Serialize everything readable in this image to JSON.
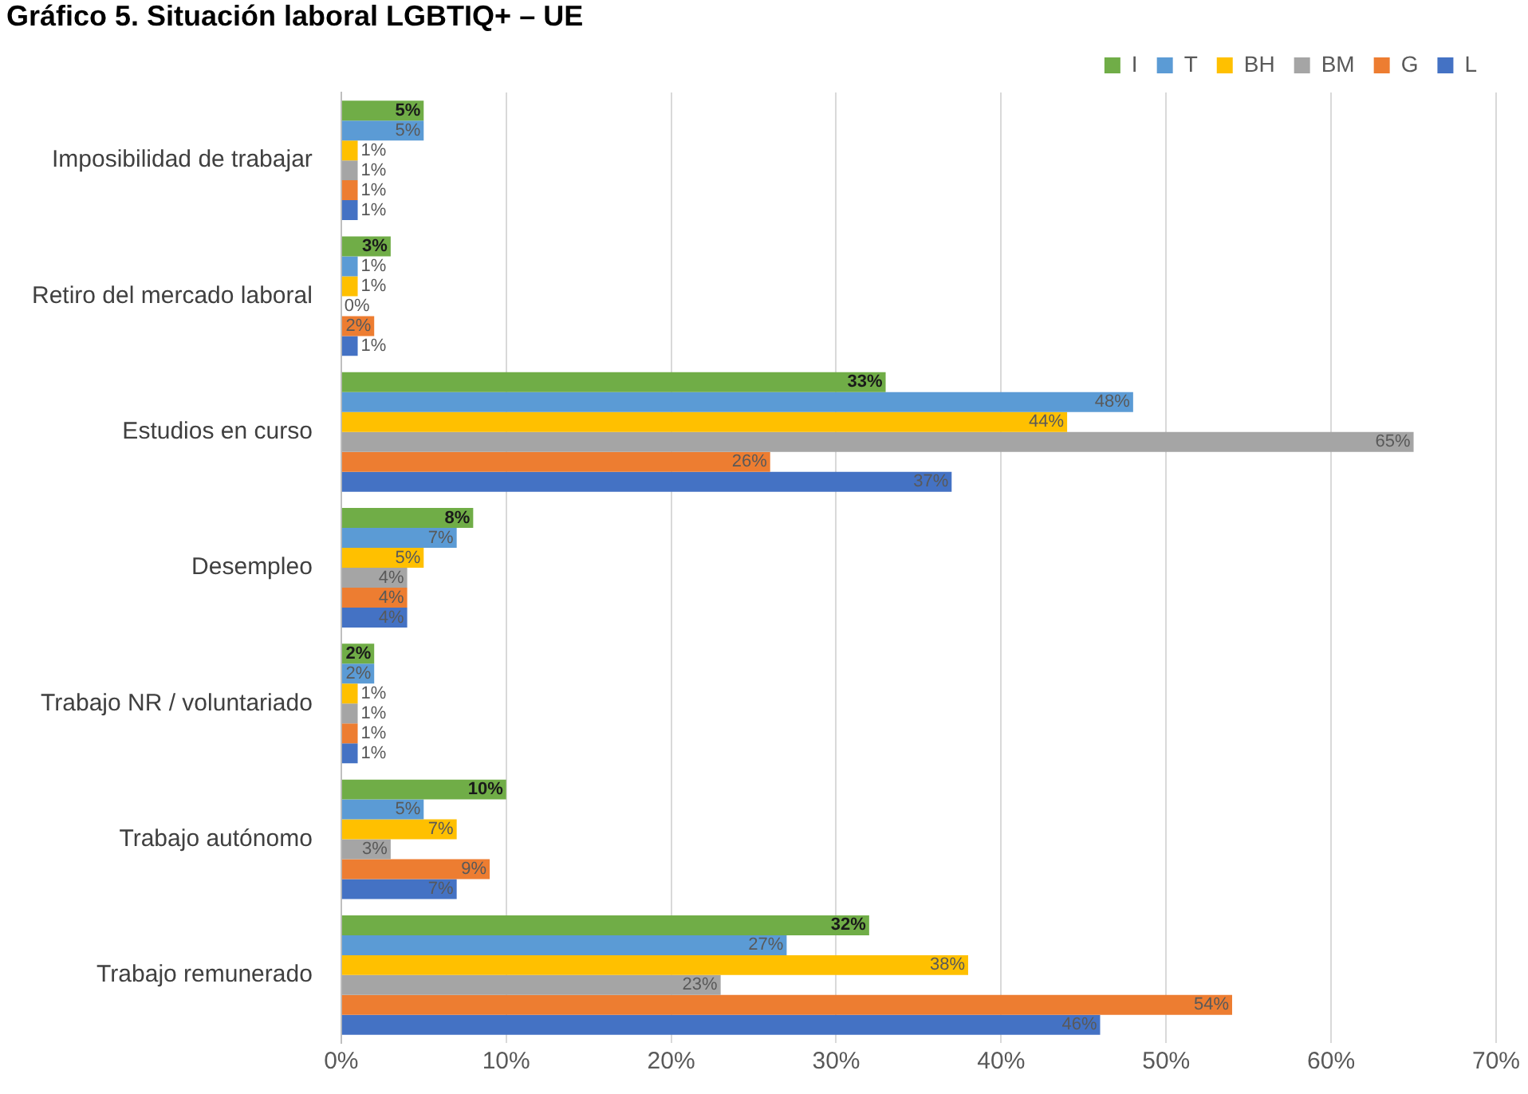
{
  "chart_data": {
    "type": "bar",
    "orientation": "horizontal",
    "title": "Gráfico 5. Situación laboral LGBTIQ+ – UE",
    "categories": [
      "Imposibilidad de trabajar",
      "Retiro del mercado laboral",
      "Estudios en curso",
      "Desempleo",
      "Trabajo NR / voluntariado",
      "Trabajo autónomo",
      "Trabajo remunerado"
    ],
    "series": [
      {
        "name": "I",
        "color": "#70ad47",
        "values": [
          5,
          3,
          33,
          8,
          2,
          10,
          32
        ],
        "value_labels": [
          "5%",
          "3%",
          "33%",
          "8%",
          "2%",
          "10%",
          "32%"
        ]
      },
      {
        "name": "T",
        "color": "#5b9bd5",
        "values": [
          5,
          1,
          48,
          7,
          2,
          5,
          27
        ],
        "value_labels": [
          "5%",
          "1%",
          "48%",
          "7%",
          "2%",
          "5%",
          "27%"
        ]
      },
      {
        "name": "BH",
        "color": "#ffc000",
        "values": [
          1,
          1,
          44,
          5,
          1,
          7,
          38
        ],
        "value_labels": [
          "1%",
          "1%",
          "44%",
          "5%",
          "1%",
          "7%",
          "38%"
        ]
      },
      {
        "name": "BM",
        "color": "#a5a5a5",
        "values": [
          1,
          0,
          65,
          4,
          1,
          3,
          23
        ],
        "value_labels": [
          "1%",
          "0%",
          "65%",
          "4%",
          "1%",
          "3%",
          "23%"
        ]
      },
      {
        "name": "G",
        "color": "#ed7d31",
        "values": [
          1,
          2,
          26,
          4,
          1,
          9,
          54
        ],
        "value_labels": [
          "1%",
          "2%",
          "26%",
          "4%",
          "1%",
          "9%",
          "54%"
        ]
      },
      {
        "name": "L",
        "color": "#4472c4",
        "values": [
          1,
          1,
          37,
          4,
          1,
          7,
          46
        ],
        "value_labels": [
          "1%",
          "1%",
          "37%",
          "4%",
          "1%",
          "7%",
          "46%"
        ]
      }
    ],
    "xlim": [
      0,
      70
    ],
    "xticks": [
      {
        "value": 0,
        "label": "0%"
      },
      {
        "value": 10,
        "label": "10%"
      },
      {
        "value": 20,
        "label": "20%"
      },
      {
        "value": 30,
        "label": "30%"
      },
      {
        "value": 40,
        "label": "40%"
      },
      {
        "value": 50,
        "label": "50%"
      },
      {
        "value": 60,
        "label": "60%"
      },
      {
        "value": 70,
        "label": "70%"
      }
    ],
    "grid": "x",
    "legend": "top right"
  }
}
